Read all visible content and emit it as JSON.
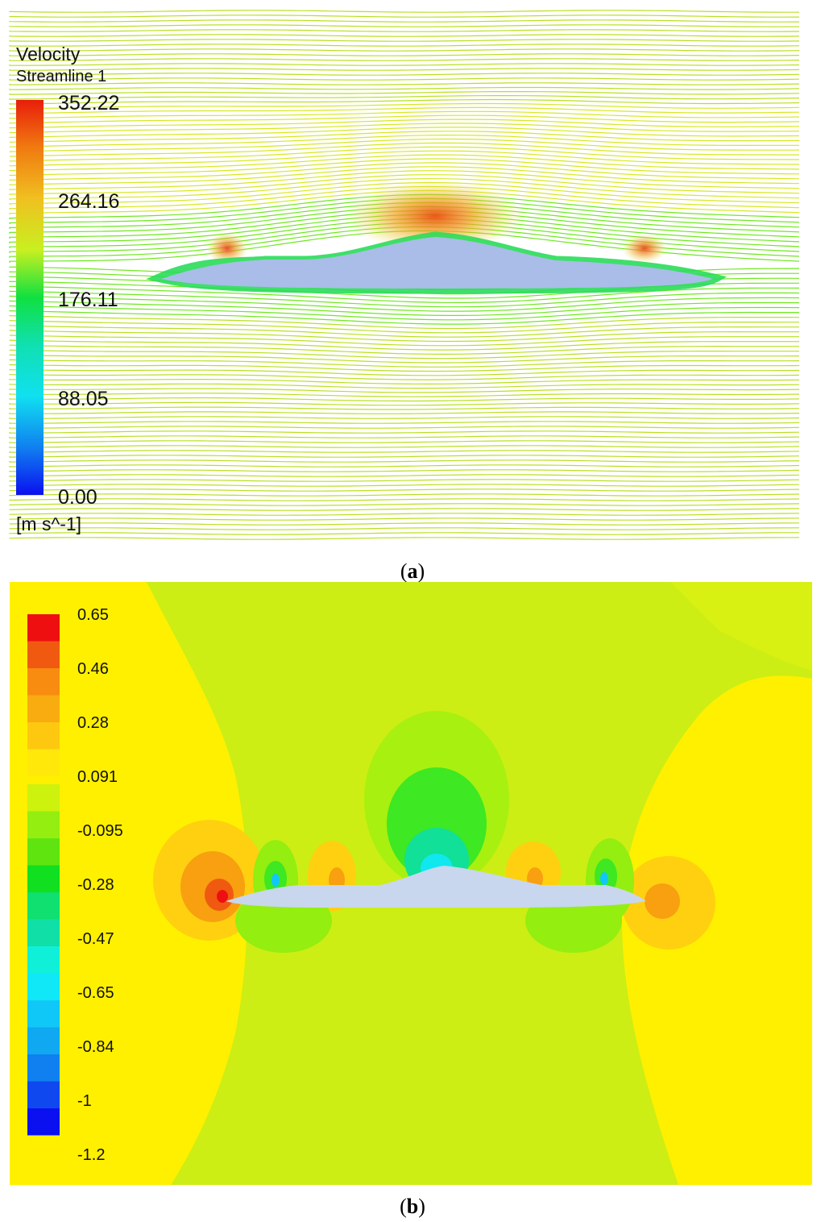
{
  "panel_a": {
    "legend": {
      "title": "Velocity",
      "subtitle": "Streamline 1",
      "ticks": [
        "352.22",
        "264.16",
        "176.11",
        "88.05",
        "0.00"
      ],
      "unit": "[m s^-1]",
      "colors": [
        "#e81e0a",
        "#f07a10",
        "#f0c020",
        "#d6f020",
        "#6ee81e",
        "#10e040",
        "#10e0a0",
        "#10d8e8",
        "#10a0f0",
        "#1050f0",
        "#0a10f0"
      ]
    },
    "caption_letter": "a",
    "airfoil_color": "#a9bde8"
  },
  "panel_b": {
    "legend": {
      "ticks": [
        "0.65",
        "0.46",
        "0.28",
        "0.091",
        "-0.095",
        "-0.28",
        "-0.47",
        "-0.65",
        "-0.84",
        "-1",
        "-1.2"
      ],
      "colors": [
        "#ee1010",
        "#f05a10",
        "#f88c10",
        "#f8ac10",
        "#ffc810",
        "#ffe80a",
        "#ccf20e",
        "#94ee10",
        "#60e410",
        "#10e020",
        "#10e070",
        "#10e0a8",
        "#10f0d8",
        "#10e8f8",
        "#10c8f8",
        "#10a8f0",
        "#1080f0",
        "#1048f0",
        "#0a10f0"
      ]
    },
    "caption_letter": "b",
    "background_color": "#ccee14",
    "airfoil_color": "#c8d6ee"
  }
}
